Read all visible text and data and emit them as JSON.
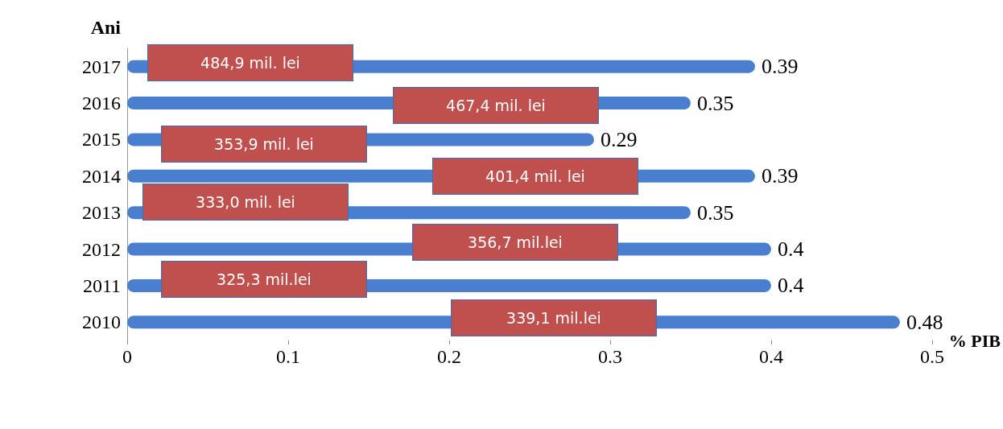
{
  "chart_data": {
    "type": "bar",
    "orientation": "horizontal",
    "categories": [
      "2017",
      "2016",
      "2015",
      "2014",
      "2013",
      "2012",
      "2011",
      "2010"
    ],
    "values": [
      0.39,
      0.35,
      0.29,
      0.39,
      0.35,
      0.4,
      0.4,
      0.48
    ],
    "color": "#4a7fd0",
    "xlim": [
      0,
      0.5
    ],
    "xticks": [
      0,
      0.1,
      0.2,
      0.3,
      0.4,
      0.5
    ],
    "xlabel": "% PIB",
    "ylabel": "Ani",
    "data_labels": true,
    "grid": false,
    "annotations": [
      "484,9 mil. lei",
      "467,4 mil. lei",
      "353,9 mil. lei",
      "401,4 mil. lei",
      "333,0 mil. lei",
      "356,7 mil.lei",
      "325,3 mil.lei",
      "339,1 mil.lei"
    ]
  }
}
